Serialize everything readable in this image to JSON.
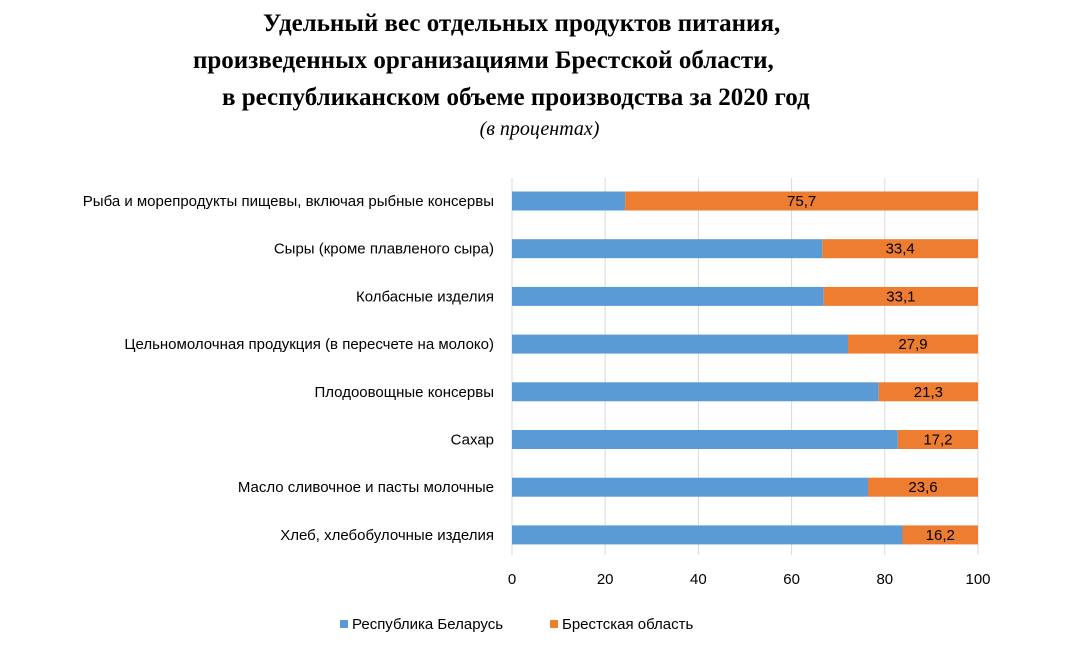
{
  "title_lines": [
    "Удельный вес отдельных продуктов питания,",
    "произведенных организациями Брестской области,",
    "в республиканском объеме производства за 2020 год"
  ],
  "subtitle": "(в процентах)",
  "chart_data": {
    "type": "bar",
    "orientation": "horizontal",
    "stacked": true,
    "title": "Удельный вес отдельных продуктов питания, произведенных организациями Брестской области, в республиканском объеме производства за 2020 год",
    "subtitle": "(в процентах)",
    "categories": [
      "Рыба и морепродукты пищевы, включая рыбные консервы",
      "Сыры (кроме плавленого сыра)",
      "Колбасные изделия",
      "Цельномолочная продукция (в пересчете на молоко)",
      "Плодоовощные консервы",
      "Сахар",
      "Масло сливочное и пасты молочные",
      "Хлеб, хлебобулочные изделия"
    ],
    "series": [
      {
        "name": "Республика Беларусь",
        "color": "#5b9bd5",
        "values": [
          24.3,
          66.6,
          66.9,
          72.1,
          78.7,
          82.8,
          76.4,
          83.8
        ]
      },
      {
        "name": "Брестская область",
        "color": "#ed7d31",
        "values": [
          75.7,
          33.4,
          33.1,
          27.9,
          21.3,
          17.2,
          23.6,
          16.2
        ],
        "data_labels": [
          "75,7",
          "33,4",
          "33,1",
          "27,9",
          "21,3",
          "17,2",
          "23,6",
          "16,2"
        ]
      }
    ],
    "xlim": [
      0,
      100
    ],
    "xticks": [
      0,
      20,
      40,
      60,
      80,
      100
    ],
    "xtick_labels": [
      "0",
      "20",
      "40",
      "60",
      "80",
      "100"
    ],
    "grid": "vertical",
    "legend": "bottom"
  }
}
